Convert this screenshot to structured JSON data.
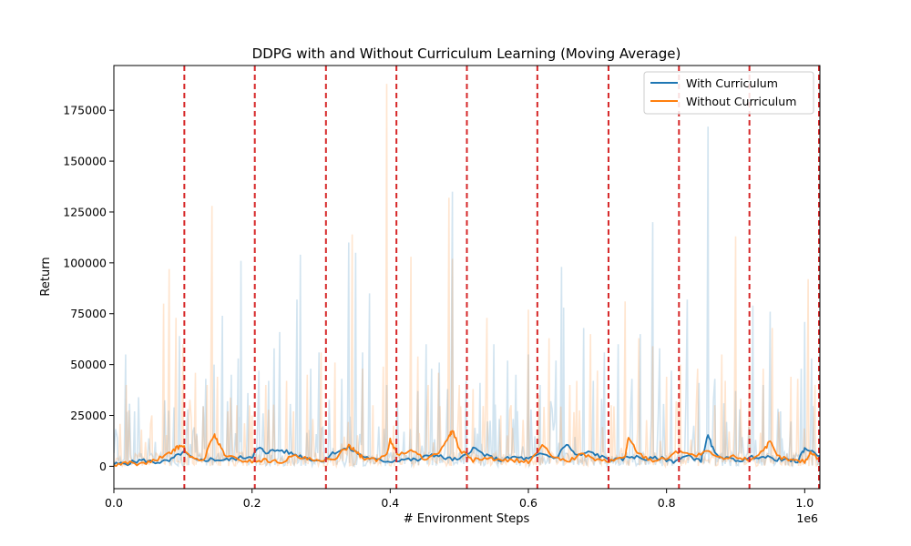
{
  "chart_data": {
    "type": "line",
    "title": "DDPG with and Without Curriculum Learning (Moving Average)",
    "xlabel": "# Environment Steps",
    "ylabel": "Return",
    "x_offset_label": "1e6",
    "xlim": [
      0,
      1.022
    ],
    "ylim": [
      -11000,
      197000
    ],
    "x_ticks": [
      0.0,
      0.2,
      0.4,
      0.6,
      0.8,
      1.0
    ],
    "x_tick_labels": [
      "0.0",
      "0.2",
      "0.4",
      "0.6",
      "0.8",
      "1.0"
    ],
    "y_ticks": [
      0,
      25000,
      50000,
      75000,
      100000,
      125000,
      150000,
      175000
    ],
    "y_tick_labels": [
      "0",
      "25000",
      "50000",
      "75000",
      "100000",
      "125000",
      "150000",
      "175000"
    ],
    "grid": false,
    "legend_position": "top-right",
    "curriculum_boundaries": [
      0.102,
      0.204,
      0.307,
      0.409,
      0.511,
      0.613,
      0.716,
      0.818,
      0.92,
      1.022
    ],
    "boundary_color": "#d62728",
    "series": [
      {
        "name": "With Curriculum",
        "color": "#1f77b4",
        "raw_color": "#a9cce3",
        "raw_peaks": [
          [
            0.005,
            14000
          ],
          [
            0.017,
            55000
          ],
          [
            0.03,
            27000
          ],
          [
            0.06,
            12000
          ],
          [
            0.087,
            29000
          ],
          [
            0.095,
            64000
          ],
          [
            0.107,
            28000
          ],
          [
            0.12,
            16000
          ],
          [
            0.133,
            43000
          ],
          [
            0.145,
            50000
          ],
          [
            0.157,
            74000
          ],
          [
            0.17,
            45000
          ],
          [
            0.18,
            53000
          ],
          [
            0.184,
            101000
          ],
          [
            0.194,
            36000
          ],
          [
            0.21,
            47000
          ],
          [
            0.224,
            42000
          ],
          [
            0.232,
            58000
          ],
          [
            0.24,
            66000
          ],
          [
            0.265,
            82000
          ],
          [
            0.27,
            104000
          ],
          [
            0.285,
            48000
          ],
          [
            0.297,
            56000
          ],
          [
            0.33,
            43000
          ],
          [
            0.34,
            110000
          ],
          [
            0.35,
            105000
          ],
          [
            0.36,
            56000
          ],
          [
            0.37,
            85000
          ],
          [
            0.395,
            40000
          ],
          [
            0.42,
            17000
          ],
          [
            0.44,
            37000
          ],
          [
            0.452,
            60000
          ],
          [
            0.46,
            48000
          ],
          [
            0.471,
            51000
          ],
          [
            0.483,
            38000
          ],
          [
            0.49,
            135000
          ],
          [
            0.51,
            42000
          ],
          [
            0.53,
            41000
          ],
          [
            0.55,
            60000
          ],
          [
            0.57,
            52000
          ],
          [
            0.582,
            45000
          ],
          [
            0.6,
            55000
          ],
          [
            0.617,
            40000
          ],
          [
            0.64,
            52000
          ],
          [
            0.648,
            98000
          ],
          [
            0.651,
            78000
          ],
          [
            0.68,
            68000
          ],
          [
            0.694,
            42000
          ],
          [
            0.71,
            56000
          ],
          [
            0.73,
            60000
          ],
          [
            0.75,
            43000
          ],
          [
            0.762,
            65000
          ],
          [
            0.78,
            120000
          ],
          [
            0.79,
            58000
          ],
          [
            0.807,
            47000
          ],
          [
            0.83,
            82000
          ],
          [
            0.847,
            41000
          ],
          [
            0.86,
            167000
          ],
          [
            0.87,
            43000
          ],
          [
            0.883,
            31000
          ],
          [
            0.9,
            37000
          ],
          [
            0.925,
            79000
          ],
          [
            0.94,
            40000
          ],
          [
            0.95,
            76000
          ],
          [
            0.965,
            27000
          ],
          [
            0.98,
            22000
          ],
          [
            0.995,
            48000
          ],
          [
            1.0,
            71000
          ],
          [
            1.01,
            53000
          ]
        ],
        "avg_points": [
          [
            0.0,
            1000
          ],
          [
            0.02,
            1500
          ],
          [
            0.04,
            3000
          ],
          [
            0.06,
            2000
          ],
          [
            0.08,
            2500
          ],
          [
            0.1,
            7000
          ],
          [
            0.12,
            2500
          ],
          [
            0.14,
            3500
          ],
          [
            0.16,
            3000
          ],
          [
            0.18,
            4000
          ],
          [
            0.2,
            5000
          ],
          [
            0.21,
            9000
          ],
          [
            0.22,
            7000
          ],
          [
            0.24,
            8000
          ],
          [
            0.26,
            6000
          ],
          [
            0.28,
            4000
          ],
          [
            0.3,
            2500
          ],
          [
            0.32,
            7000
          ],
          [
            0.34,
            9000
          ],
          [
            0.36,
            5000
          ],
          [
            0.38,
            3000
          ],
          [
            0.4,
            2500
          ],
          [
            0.42,
            3500
          ],
          [
            0.44,
            3000
          ],
          [
            0.46,
            6000
          ],
          [
            0.48,
            4000
          ],
          [
            0.5,
            3000
          ],
          [
            0.52,
            9000
          ],
          [
            0.54,
            5000
          ],
          [
            0.56,
            3000
          ],
          [
            0.58,
            4500
          ],
          [
            0.6,
            3500
          ],
          [
            0.62,
            6000
          ],
          [
            0.64,
            4000
          ],
          [
            0.655,
            11000
          ],
          [
            0.67,
            5000
          ],
          [
            0.69,
            7000
          ],
          [
            0.71,
            4000
          ],
          [
            0.73,
            3000
          ],
          [
            0.75,
            5000
          ],
          [
            0.77,
            3500
          ],
          [
            0.79,
            4000
          ],
          [
            0.81,
            2500
          ],
          [
            0.83,
            5000
          ],
          [
            0.85,
            3000
          ],
          [
            0.86,
            15000
          ],
          [
            0.87,
            6000
          ],
          [
            0.89,
            3500
          ],
          [
            0.91,
            3000
          ],
          [
            0.93,
            5000
          ],
          [
            0.95,
            4000
          ],
          [
            0.97,
            3000
          ],
          [
            0.99,
            2500
          ],
          [
            1.0,
            9000
          ],
          [
            1.022,
            5000
          ]
        ]
      },
      {
        "name": "Without Curriculum",
        "color": "#ff7f0e",
        "raw_color": "#fdd0a2",
        "raw_peaks": [
          [
            0.018,
            40000
          ],
          [
            0.04,
            18000
          ],
          [
            0.055,
            25000
          ],
          [
            0.072,
            80000
          ],
          [
            0.08,
            97000
          ],
          [
            0.09,
            73000
          ],
          [
            0.1,
            60000
          ],
          [
            0.118,
            46000
          ],
          [
            0.135,
            40000
          ],
          [
            0.142,
            128000
          ],
          [
            0.15,
            44000
          ],
          [
            0.165,
            27000
          ],
          [
            0.178,
            30000
          ],
          [
            0.2,
            25000
          ],
          [
            0.22,
            40000
          ],
          [
            0.25,
            42000
          ],
          [
            0.26,
            27000
          ],
          [
            0.28,
            45000
          ],
          [
            0.3,
            56000
          ],
          [
            0.32,
            51000
          ],
          [
            0.345,
            114000
          ],
          [
            0.36,
            48000
          ],
          [
            0.375,
            30000
          ],
          [
            0.39,
            49000
          ],
          [
            0.395,
            188000
          ],
          [
            0.405,
            20000
          ],
          [
            0.43,
            103000
          ],
          [
            0.44,
            54000
          ],
          [
            0.455,
            40000
          ],
          [
            0.47,
            46000
          ],
          [
            0.485,
            132000
          ],
          [
            0.49,
            102000
          ],
          [
            0.5,
            40000
          ],
          [
            0.52,
            38000
          ],
          [
            0.54,
            73000
          ],
          [
            0.56,
            25000
          ],
          [
            0.575,
            30000
          ],
          [
            0.6,
            77000
          ],
          [
            0.615,
            35000
          ],
          [
            0.63,
            63000
          ],
          [
            0.66,
            40000
          ],
          [
            0.67,
            42000
          ],
          [
            0.69,
            65000
          ],
          [
            0.7,
            47000
          ],
          [
            0.72,
            30000
          ],
          [
            0.74,
            81000
          ],
          [
            0.76,
            63000
          ],
          [
            0.78,
            59000
          ],
          [
            0.8,
            44000
          ],
          [
            0.82,
            50000
          ],
          [
            0.845,
            48000
          ],
          [
            0.87,
            30000
          ],
          [
            0.88,
            55000
          ],
          [
            0.885,
            42000
          ],
          [
            0.9,
            113000
          ],
          [
            0.92,
            50000
          ],
          [
            0.94,
            48000
          ],
          [
            0.953,
            68000
          ],
          [
            0.98,
            44000
          ],
          [
            0.99,
            43000
          ],
          [
            1.005,
            92000
          ],
          [
            1.015,
            40000
          ]
        ],
        "avg_points": [
          [
            0.0,
            500
          ],
          [
            0.02,
            2000
          ],
          [
            0.04,
            1000
          ],
          [
            0.06,
            3000
          ],
          [
            0.08,
            6000
          ],
          [
            0.09,
            9000
          ],
          [
            0.1,
            10000
          ],
          [
            0.11,
            4000
          ],
          [
            0.13,
            3000
          ],
          [
            0.145,
            16000
          ],
          [
            0.15,
            12000
          ],
          [
            0.16,
            6000
          ],
          [
            0.18,
            3000
          ],
          [
            0.2,
            2500
          ],
          [
            0.22,
            3000
          ],
          [
            0.24,
            2000
          ],
          [
            0.26,
            5000
          ],
          [
            0.28,
            3500
          ],
          [
            0.3,
            2000
          ],
          [
            0.32,
            4000
          ],
          [
            0.34,
            10000
          ],
          [
            0.35,
            8000
          ],
          [
            0.36,
            4000
          ],
          [
            0.38,
            3000
          ],
          [
            0.395,
            6000
          ],
          [
            0.4,
            13000
          ],
          [
            0.41,
            6000
          ],
          [
            0.43,
            7500
          ],
          [
            0.45,
            4000
          ],
          [
            0.47,
            6000
          ],
          [
            0.485,
            14000
          ],
          [
            0.49,
            18000
          ],
          [
            0.5,
            8000
          ],
          [
            0.52,
            3000
          ],
          [
            0.54,
            4000
          ],
          [
            0.56,
            2500
          ],
          [
            0.58,
            3000
          ],
          [
            0.6,
            2000
          ],
          [
            0.62,
            10000
          ],
          [
            0.64,
            3500
          ],
          [
            0.66,
            3000
          ],
          [
            0.68,
            6000
          ],
          [
            0.7,
            3000
          ],
          [
            0.72,
            2500
          ],
          [
            0.74,
            5000
          ],
          [
            0.745,
            14000
          ],
          [
            0.76,
            6000
          ],
          [
            0.78,
            3000
          ],
          [
            0.8,
            4000
          ],
          [
            0.82,
            8000
          ],
          [
            0.84,
            5000
          ],
          [
            0.86,
            7000
          ],
          [
            0.88,
            3500
          ],
          [
            0.9,
            5000
          ],
          [
            0.92,
            3000
          ],
          [
            0.94,
            8000
          ],
          [
            0.95,
            12000
          ],
          [
            0.96,
            5000
          ],
          [
            0.98,
            3000
          ],
          [
            1.0,
            2500
          ],
          [
            1.01,
            7000
          ],
          [
            1.022,
            3000
          ]
        ]
      }
    ]
  }
}
